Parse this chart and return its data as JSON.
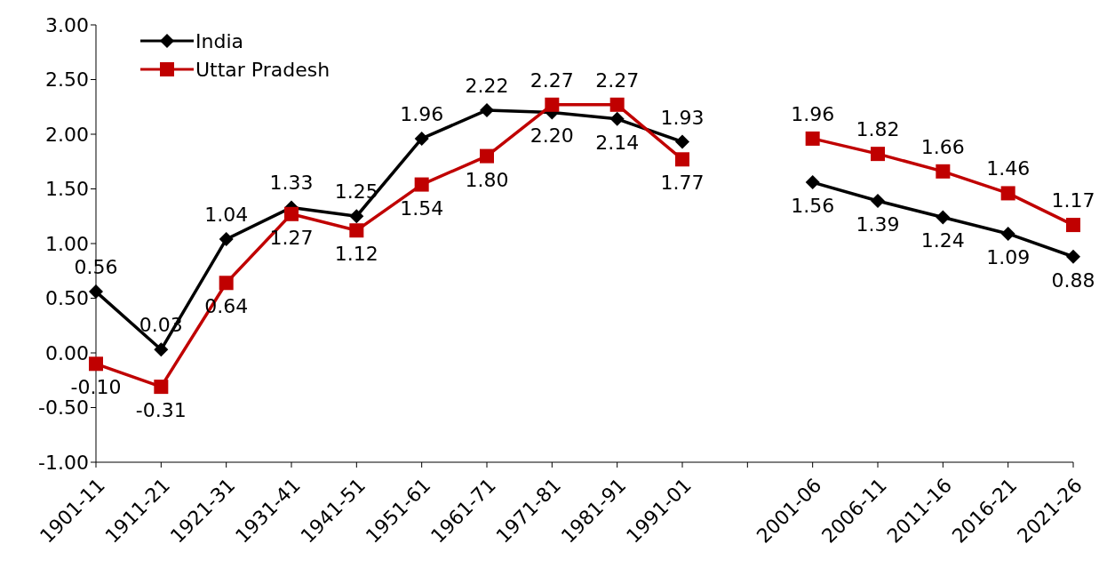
{
  "chart_data": {
    "type": "line",
    "categories": [
      "1901-11",
      "1911-21",
      "1921-31",
      "1931-41",
      "1941-51",
      "1951-61",
      "1961-71",
      "1971-81",
      "1981-91",
      "1991-01",
      null,
      "2001-06",
      "2006-11",
      "2011-16",
      "2016-21",
      "2021-26"
    ],
    "series": [
      {
        "name": "India",
        "color": "#000000",
        "marker": "diamond",
        "values": [
          0.56,
          0.03,
          1.04,
          1.33,
          1.25,
          1.96,
          2.22,
          2.2,
          2.14,
          1.93,
          null,
          1.56,
          1.39,
          1.24,
          1.09,
          0.88
        ],
        "value_labels": [
          "0.56",
          "0.03",
          "1.04",
          "1.33",
          "1.25",
          "1.96",
          "2.22",
          "2.20",
          "2.14",
          "1.93",
          null,
          "1.56",
          "1.39",
          "1.24",
          "1.09",
          "0.88"
        ]
      },
      {
        "name": "Uttar Pradesh",
        "color": "#c00000",
        "marker": "square",
        "values": [
          -0.1,
          -0.31,
          0.64,
          1.27,
          1.12,
          1.54,
          1.8,
          2.27,
          2.27,
          1.77,
          null,
          1.96,
          1.82,
          1.66,
          1.46,
          1.17
        ],
        "value_labels": [
          "-0.10",
          "-0.31",
          "0.64",
          "1.27",
          "1.12",
          "1.54",
          "1.80",
          "2.27",
          "2.27",
          "1.77",
          null,
          "1.96",
          "1.82",
          "1.66",
          "1.46",
          "1.17"
        ]
      }
    ],
    "ylim": [
      -1,
      3
    ],
    "yticks": [
      {
        "value": -1,
        "label": "-1.00"
      },
      {
        "value": -0.5,
        "label": "-0.50"
      },
      {
        "value": 0,
        "label": "0.00"
      },
      {
        "value": 0.5,
        "label": "0.50"
      },
      {
        "value": 1,
        "label": "1.00"
      },
      {
        "value": 1.5,
        "label": "1.50"
      },
      {
        "value": 2,
        "label": "2.00"
      },
      {
        "value": 2.5,
        "label": "2.50"
      },
      {
        "value": 3,
        "label": "3.00"
      }
    ],
    "legend": "top left",
    "grid": false
  }
}
